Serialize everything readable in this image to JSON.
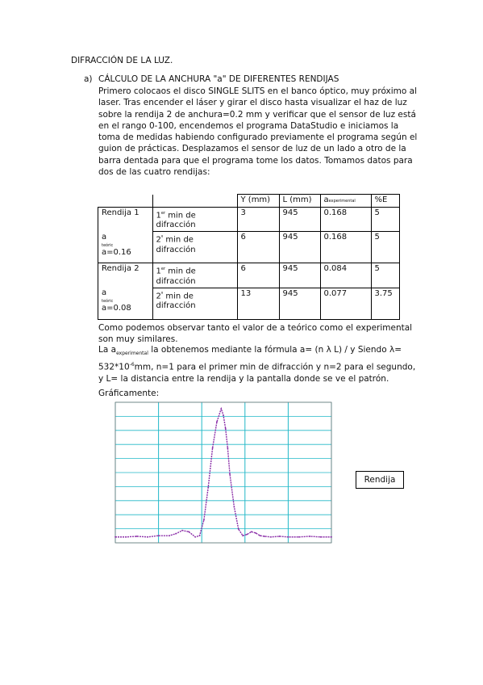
{
  "document": {
    "title": "DIFRACCIÓN DE LA LUZ.",
    "section_letter": "a)",
    "section_title": "CÁLCULO DE LA ANCHURA \"a\" DE DIFERENTES RENDIJAS",
    "intro": "Primero colocaos el disco SINGLE SLITS en el banco óptico, muy próximo al laser. Tras encender el láser y girar el disco hasta visualizar el haz de luz sobre la rendija 2 de anchura=0.2 mm y verificar que el sensor de luz está en el rango 0-100, encendemos el programa DataStudio e iniciamos la toma de medidas habiendo configurado previamente el programa según el guion de prácticas. Desplazamos el sensor de luz de un lado a otro de la barra dentada para que el programa tome los datos. Tomamos datos para dos de las cuatro rendijas:",
    "observation": "Como podemos observar tanto el valor de a teórico como el experimental son muy similares.",
    "formula_prefix": "La a",
    "formula_sub": "experimental",
    "formula_mid": " la obtenemos mediante la fórmula a= (n λ L) / y   Siendo λ= 532*10",
    "formula_sup": "-6",
    "formula_rest": "mm, n=1 para el primer min de difracción y n=2 para el segundo, y L= la distancia entre la rendija y la pantalla donde se ve el patrón.",
    "graph_label": "Gráficamente:",
    "legend_box": "Rendija"
  },
  "table": {
    "headers": [
      "Y (mm)",
      "L (mm)",
      "a",
      "experimental",
      "%E"
    ],
    "rendija1": {
      "name": "Rendija 1",
      "a_label": "a",
      "teoric_label": "teóric",
      "a_value": "a=0.16",
      "rows": [
        {
          "min": "1",
          "min_sup": "er",
          "min_text": " min de difracción",
          "y": "3",
          "l": "945",
          "a": "0.168",
          "e": "5"
        },
        {
          "min": "2",
          "min_sup": "º",
          "min_text": " min de difracción",
          "y": "6",
          "l": "945",
          "a": "0.168",
          "e": "5"
        }
      ]
    },
    "rendija2": {
      "name": "Rendija 2",
      "a_label": "a",
      "teoric_label": "teóric",
      "a_value": "a=0.08",
      "rows": [
        {
          "min": "1",
          "min_sup": "er",
          "min_text": " min de difracción",
          "y": "6",
          "l": "945",
          "a": "0.084",
          "e": "5"
        },
        {
          "min": "2",
          "min_sup": "º",
          "min_text": " min de difracción",
          "y": "13",
          "l": "945",
          "a": "0.077",
          "e": "3.75"
        }
      ]
    }
  },
  "chart_data": {
    "type": "line",
    "title": "",
    "xlabel": "",
    "ylabel": "",
    "xlim": [
      0,
      1
    ],
    "ylim": [
      0,
      1
    ],
    "grid": true,
    "series": [
      {
        "color": "#8b2fa8",
        "x": [
          0.0,
          0.05,
          0.1,
          0.15,
          0.2,
          0.25,
          0.28,
          0.31,
          0.34,
          0.37,
          0.39,
          0.41,
          0.43,
          0.45,
          0.47,
          0.49,
          0.5,
          0.51,
          0.52,
          0.53,
          0.55,
          0.57,
          0.59,
          0.61,
          0.63,
          0.65,
          0.67,
          0.69,
          0.72,
          0.76,
          0.8,
          0.85,
          0.9,
          0.95,
          1.0
        ],
        "y": [
          0.02,
          0.02,
          0.025,
          0.02,
          0.03,
          0.03,
          0.045,
          0.07,
          0.06,
          0.02,
          0.03,
          0.15,
          0.4,
          0.7,
          0.9,
          1.0,
          0.95,
          0.85,
          0.7,
          0.5,
          0.25,
          0.08,
          0.03,
          0.04,
          0.06,
          0.05,
          0.03,
          0.025,
          0.02,
          0.025,
          0.02,
          0.02,
          0.025,
          0.02,
          0.02
        ]
      }
    ]
  },
  "colors": {
    "grid": "#22b8c8",
    "curve": "#8b2fa8"
  }
}
